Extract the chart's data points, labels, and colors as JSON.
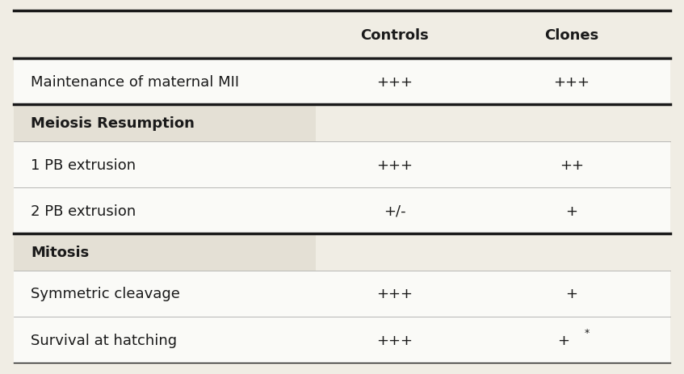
{
  "header_row": [
    "",
    "Controls",
    "Clones"
  ],
  "rows": [
    {
      "label": "Maintenance of maternal MII",
      "controls": "+++",
      "clones": "+++",
      "is_section": false
    },
    {
      "label": "Meiosis Resumption",
      "controls": "",
      "clones": "",
      "is_section": true
    },
    {
      "label": "1 PB extrusion",
      "controls": "+++",
      "clones": "++",
      "is_section": false
    },
    {
      "label": "2 PB extrusion",
      "controls": "+/-",
      "clones": "+",
      "is_section": false
    },
    {
      "label": "Mitosis",
      "controls": "",
      "clones": "",
      "is_section": true
    },
    {
      "label": "Symmetric cleavage",
      "controls": "+++",
      "clones": "+",
      "is_section": false
    },
    {
      "label": "Survival at hatching",
      "controls": "+++",
      "clones": "+*",
      "is_section": false
    }
  ],
  "bg_color": "#f0ede4",
  "header_bg": "#f0ede4",
  "section_bg": "#e4e0d5",
  "cell_bg": "#fafaf7",
  "text_color": "#1a1a1a",
  "border_color": "#1a1a1a",
  "header_font_size": 13,
  "row_font_size": 13,
  "section_font_size": 13,
  "figsize": [
    8.47,
    4.64
  ],
  "dpi": 100
}
